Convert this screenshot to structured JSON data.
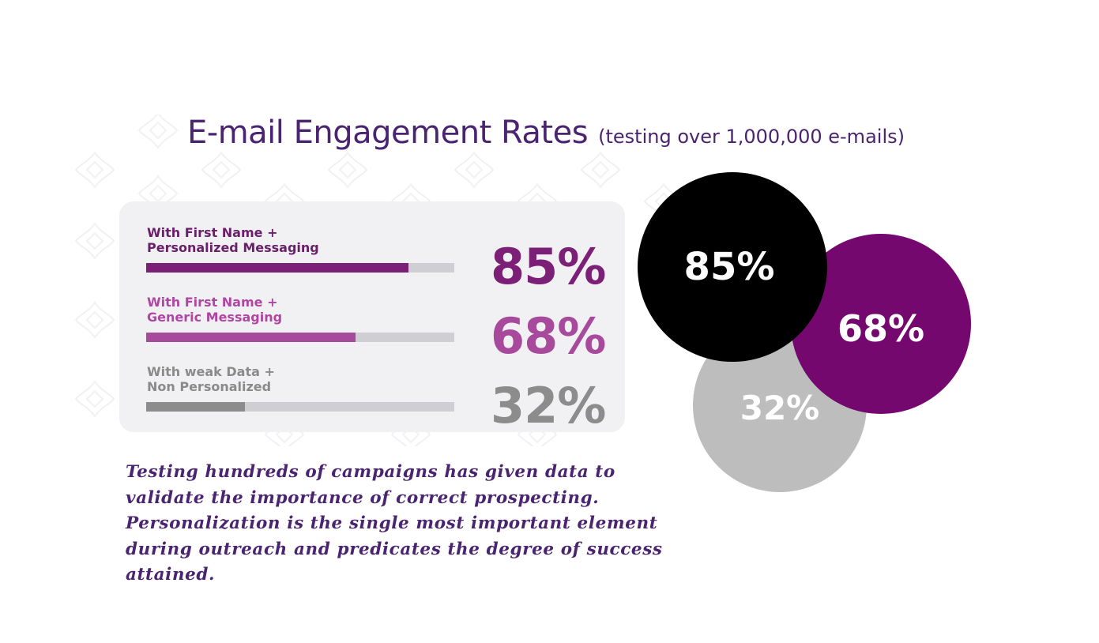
{
  "header": {
    "title": "E-mail Engagement Rates",
    "subtitle": "(testing over 1,000,000 e-mails)"
  },
  "chart_data": [
    {
      "type": "bar",
      "orientation": "horizontal",
      "categories": [
        [
          "With First Name +",
          "Personalized Messaging"
        ],
        [
          "With First Name +",
          "Generic Messaging"
        ],
        [
          "With weak Data +",
          "Non Personalized"
        ]
      ],
      "values": [
        85,
        68,
        32
      ],
      "value_labels": [
        "85%",
        "68%",
        "32%"
      ],
      "colors": [
        "#7b2076",
        "#a84a9c",
        "#8c8c8c"
      ],
      "track_color": "#cfcfd3",
      "label_colors": [
        "#6a1f6a",
        "#b046a4",
        "#8a8a8a"
      ],
      "ylim": [
        0,
        100
      ]
    },
    {
      "type": "bubble",
      "labels": [
        "85%",
        "68%",
        "32%"
      ],
      "values": [
        85,
        68,
        32
      ],
      "colors": [
        "#000000",
        "#74086f",
        "#bdbdbd"
      ]
    }
  ],
  "footer": {
    "note": "Testing hundreds of campaigns has given data to validate the importance of correct prospecting. Personalization is the single most important element during outreach and predicates the degree of success attained."
  }
}
